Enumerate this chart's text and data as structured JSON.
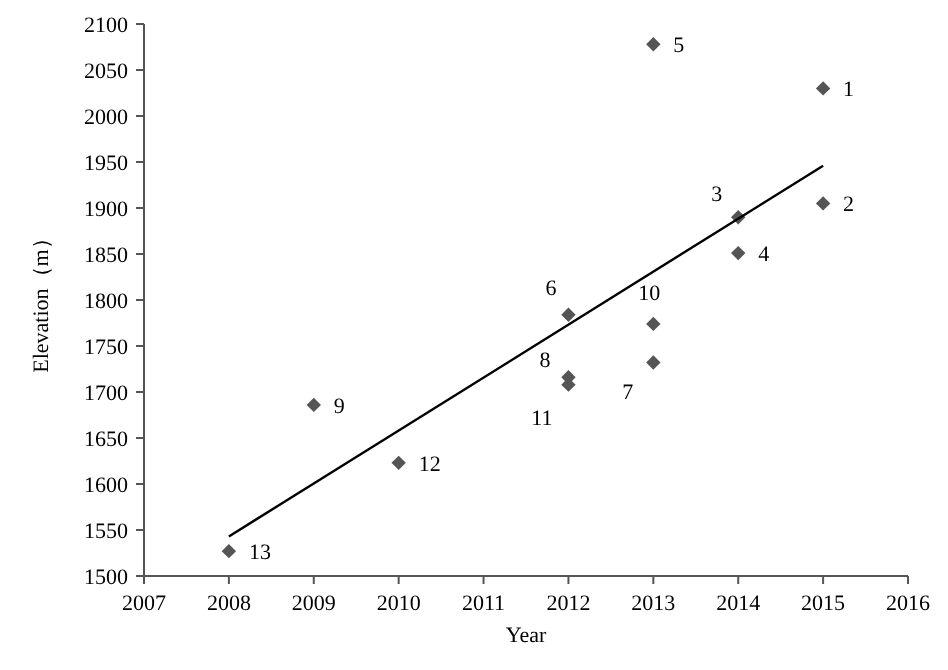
{
  "chart_data": {
    "type": "scatter",
    "xlabel": "Year",
    "ylabel": "Elevation（m）",
    "xlim": [
      2007,
      2016
    ],
    "xticks": [
      2007,
      2008,
      2009,
      2010,
      2011,
      2012,
      2013,
      2014,
      2015,
      2016
    ],
    "ylim": [
      1500,
      2100
    ],
    "yticks": [
      1500,
      1550,
      1600,
      1650,
      1700,
      1750,
      1800,
      1850,
      1900,
      1950,
      2000,
      2050,
      2100
    ],
    "grid": false,
    "marker": "diamond",
    "series": [
      {
        "color": "#555555",
        "x": [
          2015,
          2015,
          2014,
          2014,
          2013,
          2012,
          2013,
          2012,
          2009,
          2013,
          2012,
          2010,
          2008
        ],
        "values": [
          2030,
          1905,
          1890,
          1851,
          2078,
          1784,
          1732,
          1716,
          1686,
          1774,
          1708,
          1623,
          1527
        ]
      },
      {
        "type": "line",
        "color": "#000000",
        "marker": "none",
        "x": [
          2008,
          2015
        ],
        "values": [
          1543,
          1946
        ]
      }
    ],
    "annotations": [
      {
        "text": "1",
        "x": 2015,
        "y": 2030
      },
      {
        "text": "2",
        "x": 2015,
        "y": 1905
      },
      {
        "text": "3",
        "x": 2014,
        "y": 1890
      },
      {
        "text": "4",
        "x": 2014,
        "y": 1851
      },
      {
        "text": "5",
        "x": 2013,
        "y": 2078
      },
      {
        "text": "6",
        "x": 2012,
        "y": 1784
      },
      {
        "text": "7",
        "x": 2013,
        "y": 1732
      },
      {
        "text": "8",
        "x": 2012,
        "y": 1716
      },
      {
        "text": "9",
        "x": 2009,
        "y": 1686
      },
      {
        "text": "10",
        "x": 2013,
        "y": 1774
      },
      {
        "text": "11",
        "x": 2012,
        "y": 1708
      },
      {
        "text": "12",
        "x": 2010,
        "y": 1623
      },
      {
        "text": "13",
        "x": 2008,
        "y": 1527
      }
    ]
  }
}
